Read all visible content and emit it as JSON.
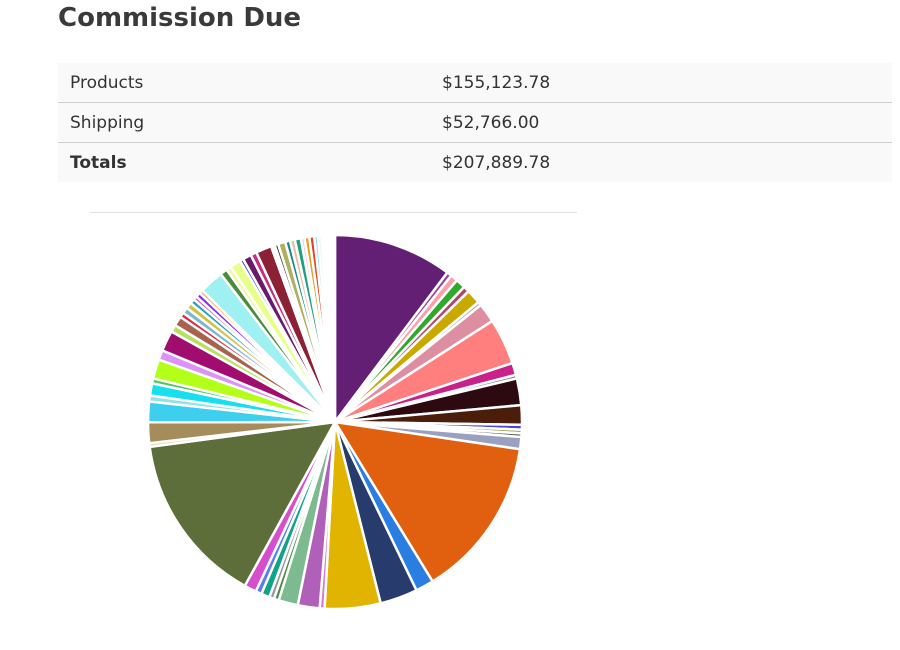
{
  "page": {
    "title": "Commission Due"
  },
  "summary": {
    "rows": [
      {
        "label": "Products",
        "value": "$155,123.78"
      },
      {
        "label": "Shipping",
        "value": "$52,766.00"
      }
    ],
    "total": {
      "label": "Totals",
      "value": "$207,889.78"
    }
  },
  "chart_data": {
    "type": "pie",
    "title": "",
    "legend": "none",
    "slices": [
      {
        "value": 9.8,
        "color": "#621f73"
      },
      {
        "value": 0.4,
        "color": "#8e44ad"
      },
      {
        "value": 0.6,
        "color": "#ff9ea8"
      },
      {
        "value": 0.8,
        "color": "#2fa82c"
      },
      {
        "value": 0.5,
        "color": "#b3456d"
      },
      {
        "value": 1.2,
        "color": "#c9a800"
      },
      {
        "value": 0.3,
        "color": "#a7a7a7"
      },
      {
        "value": 1.6,
        "color": "#dd8fa1"
      },
      {
        "value": 3.8,
        "color": "#ff7f7f"
      },
      {
        "value": 1.0,
        "color": "#c9208a"
      },
      {
        "value": 0.3,
        "color": "#7f7f7f"
      },
      {
        "value": 2.2,
        "color": "#2c0a10"
      },
      {
        "value": 1.6,
        "color": "#4a1e0a"
      },
      {
        "value": 0.4,
        "color": "#4646e0"
      },
      {
        "value": 0.3,
        "color": "#99a04d"
      },
      {
        "value": 0.3,
        "color": "#5f5f5f"
      },
      {
        "value": 1.0,
        "color": "#9aa1c0"
      },
      {
        "value": 13.3,
        "color": "#e0600f"
      },
      {
        "value": 1.5,
        "color": "#2a7de1"
      },
      {
        "value": 3.1,
        "color": "#283b6d"
      },
      {
        "value": 4.6,
        "color": "#e0b400"
      },
      {
        "value": 0.4,
        "color": "#d27bd4"
      },
      {
        "value": 1.8,
        "color": "#b060b8"
      },
      {
        "value": 1.6,
        "color": "#7dba90"
      },
      {
        "value": 0.4,
        "color": "#4a8f4a"
      },
      {
        "value": 0.4,
        "color": "#999999"
      },
      {
        "value": 0.7,
        "color": "#11a38a"
      },
      {
        "value": 0.5,
        "color": "#5b7cf0"
      },
      {
        "value": 1.0,
        "color": "#d54fcc"
      },
      {
        "value": 14.2,
        "color": "#5d6e3a"
      },
      {
        "value": 0.3,
        "color": "#e8d8b0"
      },
      {
        "value": 1.7,
        "color": "#a68b5b"
      },
      {
        "value": 1.7,
        "color": "#3ecfee"
      },
      {
        "value": 0.5,
        "color": "#8fe3e3"
      },
      {
        "value": 1.0,
        "color": "#16e0f0"
      },
      {
        "value": 0.4,
        "color": "#4fc460"
      },
      {
        "value": 1.6,
        "color": "#b3ff1a"
      },
      {
        "value": 0.8,
        "color": "#dc92f6"
      },
      {
        "value": 1.7,
        "color": "#a10d6e"
      },
      {
        "value": 0.6,
        "color": "#b8e060"
      },
      {
        "value": 0.8,
        "color": "#a8634f"
      },
      {
        "value": 0.4,
        "color": "#e0243a"
      },
      {
        "value": 0.5,
        "color": "#7ab8d0"
      },
      {
        "value": 0.5,
        "color": "#d4c040"
      },
      {
        "value": 0.4,
        "color": "#26a0c0"
      },
      {
        "value": 0.3,
        "color": "#c44ea8"
      },
      {
        "value": 0.4,
        "color": "#8a2be2"
      },
      {
        "value": 0.3,
        "color": "#f0a030"
      },
      {
        "value": 2.0,
        "color": "#9ff0f0"
      },
      {
        "value": 0.6,
        "color": "#4a8c3a"
      },
      {
        "value": 0.4,
        "color": "#f5f5a0"
      },
      {
        "value": 0.9,
        "color": "#e8ff8a"
      },
      {
        "value": 0.3,
        "color": "#3a4ad0"
      },
      {
        "value": 0.7,
        "color": "#6a1a6a"
      },
      {
        "value": 0.5,
        "color": "#c03080"
      },
      {
        "value": 1.3,
        "color": "#8c2136"
      },
      {
        "value": 0.3,
        "color": "#f5f5f5"
      },
      {
        "value": 0.3,
        "color": "#404040"
      },
      {
        "value": 0.6,
        "color": "#b0b060"
      },
      {
        "value": 0.4,
        "color": "#1a8a8a"
      },
      {
        "value": 0.4,
        "color": "#e8c0a0"
      },
      {
        "value": 0.5,
        "color": "#20a080"
      },
      {
        "value": 0.3,
        "color": "#f0c8d8"
      },
      {
        "value": 0.4,
        "color": "#e8a020"
      },
      {
        "value": 0.4,
        "color": "#e84020"
      },
      {
        "value": 0.3,
        "color": "#8ad8f0"
      },
      {
        "value": 0.3,
        "color": "#f0f0f0"
      },
      {
        "value": 0.2,
        "color": "#f5d0d0"
      },
      {
        "value": 0.2,
        "color": "#d04040"
      },
      {
        "value": 0.2,
        "color": "#f8e8f0"
      },
      {
        "value": 0.2,
        "color": "#a01050"
      },
      {
        "value": 0.3,
        "color": "#ffffff"
      }
    ]
  }
}
